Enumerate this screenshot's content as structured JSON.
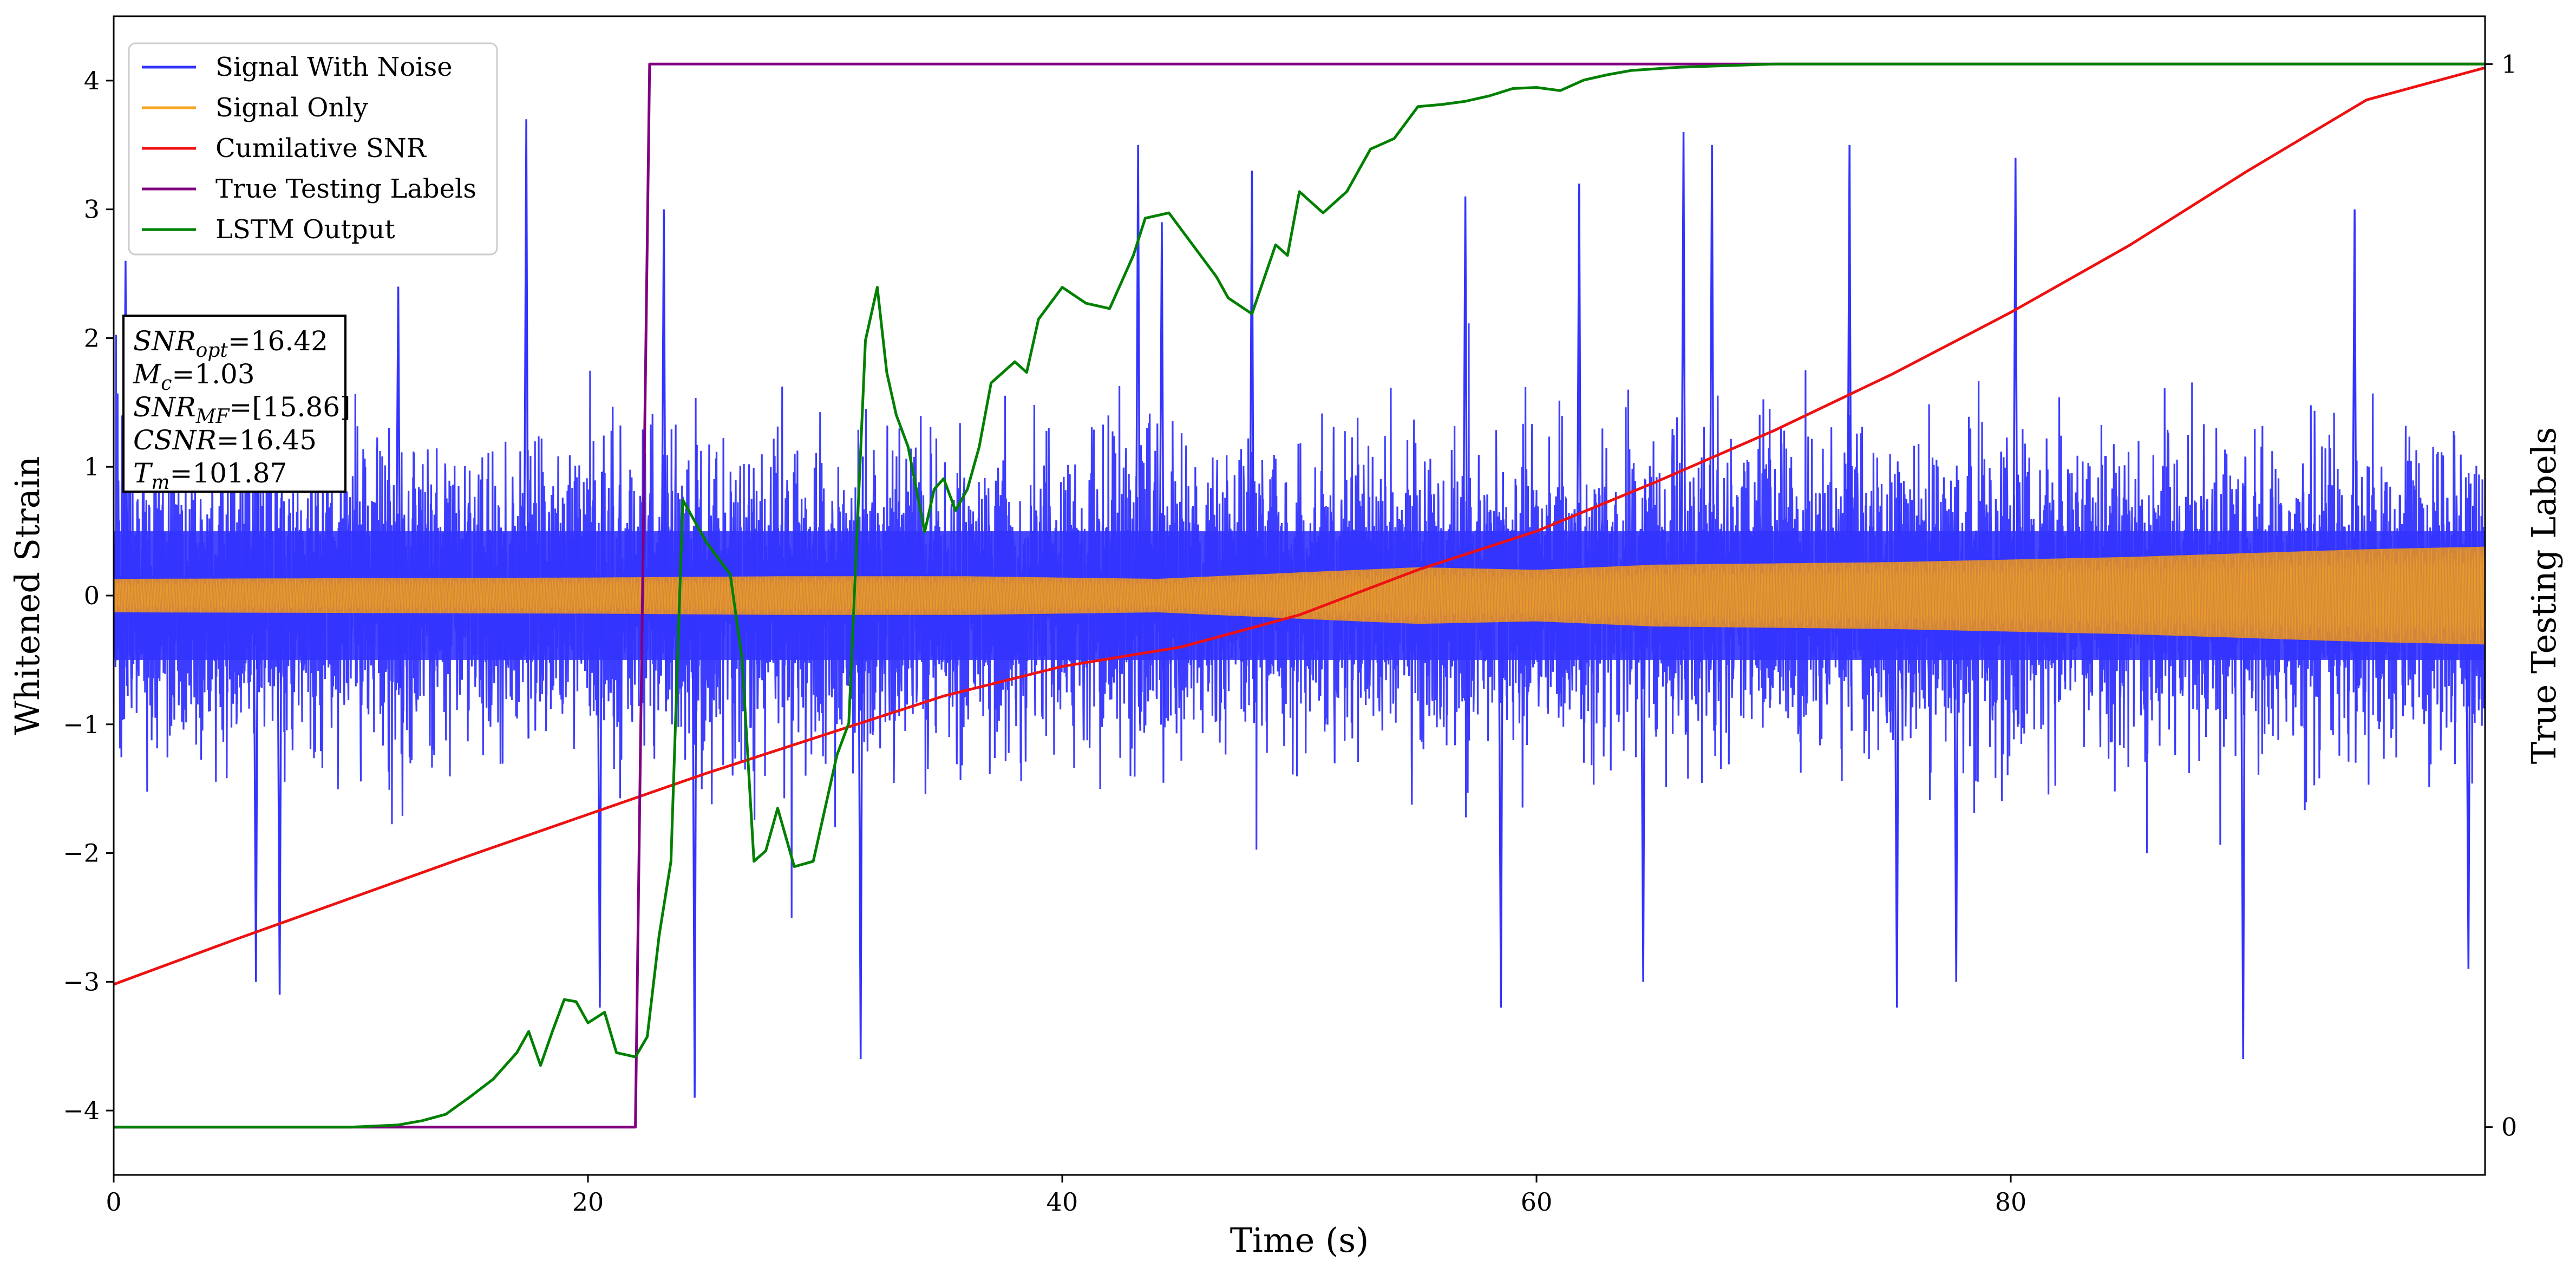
{
  "chart_data": {
    "type": "line",
    "title": "",
    "xlabel": "Time (s)",
    "ylabel": "Whitened Strain",
    "y2label": "True Testing Labels",
    "xlim": [
      0,
      100
    ],
    "ylim": [
      -4.5,
      4.5
    ],
    "y2lim": [
      -0.045,
      1.045
    ],
    "x_ticks": [
      "0",
      "20",
      "40",
      "60",
      "80"
    ],
    "y_ticks": [
      "4",
      "3",
      "2",
      "1",
      "0",
      "−1",
      "−2",
      "−3",
      "−4"
    ],
    "y2_ticks": [
      "1",
      "0"
    ],
    "grid": false,
    "legend_position": "top-left",
    "legend": [
      "Signal With Noise",
      "Signal Only",
      "Cumilative SNR",
      "True Testing Labels",
      "LSTM Output"
    ],
    "colors": {
      "noise": "#3333ff",
      "signal": "#f5a623",
      "signal_overlap": "#d4873a",
      "csnr": "#ee1111",
      "labels": "#800080",
      "lstm": "#008000"
    },
    "annotation": {
      "lines": [
        {
          "base": "SNR",
          "sub": "opt",
          "value": "=16.42"
        },
        {
          "base": "M",
          "sub": "c",
          "value": "=1.03"
        },
        {
          "base": "SNR",
          "sub": "MF",
          "value": "=[15.86]"
        },
        {
          "base": "CSNR",
          "sub": "",
          "value": "=16.45"
        },
        {
          "base": "T",
          "sub": "m",
          "value": "=101.87"
        }
      ]
    },
    "series": [
      {
        "name": "Signal With Noise",
        "axis": "left",
        "style": "noise-band",
        "inner_envelope_approx": 0.5,
        "outer_envelope_approx": 2.0,
        "extreme_spikes": [
          [
            0.5,
            2.6
          ],
          [
            6,
            -3.0
          ],
          [
            7,
            -3.1
          ],
          [
            12,
            2.4
          ],
          [
            17.4,
            3.7
          ],
          [
            20.5,
            -3.2
          ],
          [
            23.2,
            3.0
          ],
          [
            24.5,
            -3.9
          ],
          [
            31.5,
            -3.6
          ],
          [
            43.2,
            3.5
          ],
          [
            44.2,
            2.9
          ],
          [
            48,
            3.3
          ],
          [
            57,
            3.1
          ],
          [
            58.5,
            -3.2
          ],
          [
            61.8,
            3.2
          ],
          [
            64.5,
            -3.0
          ],
          [
            66.2,
            3.6
          ],
          [
            67.4,
            3.5
          ],
          [
            73.2,
            3.5
          ],
          [
            75.2,
            -3.2
          ],
          [
            77.7,
            -3.0
          ],
          [
            80.2,
            3.4
          ],
          [
            89.8,
            -3.6
          ],
          [
            94.5,
            3.0
          ],
          [
            99.3,
            -2.9
          ]
        ]
      },
      {
        "name": "Signal Only",
        "axis": "left",
        "style": "oscillation-band",
        "amplitude": [
          [
            0,
            0.13
          ],
          [
            20,
            0.14
          ],
          [
            28,
            0.15
          ],
          [
            36,
            0.15
          ],
          [
            44,
            0.13
          ],
          [
            50,
            0.18
          ],
          [
            55,
            0.22
          ],
          [
            60,
            0.2
          ],
          [
            65,
            0.24
          ],
          [
            70,
            0.25
          ],
          [
            75,
            0.26
          ],
          [
            80,
            0.28
          ],
          [
            85,
            0.3
          ],
          [
            90,
            0.33
          ],
          [
            95,
            0.36
          ],
          [
            100,
            0.38
          ]
        ]
      },
      {
        "name": "Cumilative SNR",
        "axis": "left",
        "points": [
          [
            0,
            -3.02
          ],
          [
            5,
            -2.68
          ],
          [
            10,
            -2.35
          ],
          [
            15,
            -2.02
          ],
          [
            20,
            -1.7
          ],
          [
            25,
            -1.38
          ],
          [
            30,
            -1.08
          ],
          [
            35,
            -0.78
          ],
          [
            40,
            -0.55
          ],
          [
            45,
            -0.4
          ],
          [
            50,
            -0.15
          ],
          [
            55,
            0.2
          ],
          [
            60,
            0.5
          ],
          [
            65,
            0.88
          ],
          [
            70,
            1.28
          ],
          [
            75,
            1.72
          ],
          [
            80,
            2.2
          ],
          [
            85,
            2.72
          ],
          [
            90,
            3.3
          ],
          [
            95,
            3.85
          ],
          [
            100,
            4.1
          ]
        ]
      },
      {
        "name": "True Testing Labels",
        "axis": "right",
        "points": [
          [
            0,
            0
          ],
          [
            22,
            0
          ],
          [
            22.6,
            1
          ],
          [
            100,
            1
          ]
        ]
      },
      {
        "name": "LSTM Output",
        "axis": "right",
        "points": [
          [
            0,
            0
          ],
          [
            10,
            0
          ],
          [
            12,
            0.002
          ],
          [
            13,
            0.006
          ],
          [
            14,
            0.012
          ],
          [
            15,
            0.028
          ],
          [
            16,
            0.045
          ],
          [
            17,
            0.07
          ],
          [
            17.5,
            0.09
          ],
          [
            18,
            0.058
          ],
          [
            18.5,
            0.09
          ],
          [
            19,
            0.12
          ],
          [
            19.5,
            0.118
          ],
          [
            20,
            0.098
          ],
          [
            20.7,
            0.108
          ],
          [
            21.2,
            0.07
          ],
          [
            22,
            0.066
          ],
          [
            22.5,
            0.085
          ],
          [
            23,
            0.18
          ],
          [
            23.5,
            0.25
          ],
          [
            24,
            0.59
          ],
          [
            24.5,
            0.57
          ],
          [
            25,
            0.55
          ],
          [
            26,
            0.52
          ],
          [
            26.5,
            0.44
          ],
          [
            27,
            0.25
          ],
          [
            27.5,
            0.26
          ],
          [
            28,
            0.3
          ],
          [
            28.7,
            0.245
          ],
          [
            29.5,
            0.25
          ],
          [
            30,
            0.3
          ],
          [
            30.5,
            0.35
          ],
          [
            31,
            0.38
          ],
          [
            31.7,
            0.74
          ],
          [
            32.2,
            0.79
          ],
          [
            32.6,
            0.71
          ],
          [
            33,
            0.67
          ],
          [
            33.5,
            0.64
          ],
          [
            34.2,
            0.56
          ],
          [
            34.6,
            0.6
          ],
          [
            35,
            0.61
          ],
          [
            35.5,
            0.58
          ],
          [
            36,
            0.6
          ],
          [
            36.5,
            0.64
          ],
          [
            37,
            0.7
          ],
          [
            37.5,
            0.71
          ],
          [
            38,
            0.72
          ],
          [
            38.5,
            0.71
          ],
          [
            39,
            0.76
          ],
          [
            40,
            0.79
          ],
          [
            41,
            0.775
          ],
          [
            42,
            0.77
          ],
          [
            43,
            0.82
          ],
          [
            43.5,
            0.855
          ],
          [
            44.5,
            0.86
          ],
          [
            45.5,
            0.83
          ],
          [
            46.5,
            0.8
          ],
          [
            47,
            0.78
          ],
          [
            48,
            0.765
          ],
          [
            49,
            0.83
          ],
          [
            49.5,
            0.82
          ],
          [
            50,
            0.88
          ],
          [
            51,
            0.86
          ],
          [
            52,
            0.88
          ],
          [
            53,
            0.92
          ],
          [
            54,
            0.93
          ],
          [
            55,
            0.96
          ],
          [
            56,
            0.962
          ],
          [
            57,
            0.965
          ],
          [
            58,
            0.97
          ],
          [
            59,
            0.977
          ],
          [
            60,
            0.978
          ],
          [
            61,
            0.975
          ],
          [
            62,
            0.985
          ],
          [
            63,
            0.99
          ],
          [
            64,
            0.994
          ],
          [
            66,
            0.997
          ],
          [
            70,
            1
          ],
          [
            100,
            1
          ]
        ]
      }
    ]
  }
}
